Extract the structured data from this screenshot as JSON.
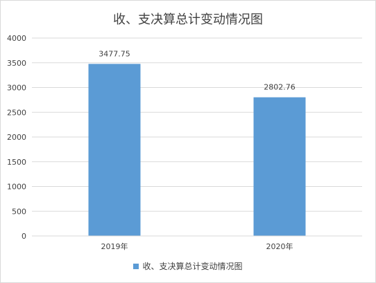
{
  "chart_data": {
    "type": "bar",
    "title": "收、支决算总计变动情况图",
    "categories": [
      "2019年",
      "2020年"
    ],
    "series": [
      {
        "name": "收、支决算总计变动情况图",
        "values": [
          3477.75,
          2802.76
        ],
        "color": "#5b9bd5"
      }
    ],
    "data_labels": [
      "3477.75",
      "2802.76"
    ],
    "ylim": [
      0,
      4000
    ],
    "yticks": [
      0,
      500,
      1000,
      1500,
      2000,
      2500,
      3000,
      3500,
      4000
    ],
    "ytick_labels": [
      "0",
      "500",
      "1000",
      "1500",
      "2000",
      "2500",
      "3000",
      "3500",
      "4000"
    ],
    "grid": true,
    "legend_position": "bottom",
    "gridline_color": "#d9d9d9",
    "text_color": "#404040"
  }
}
